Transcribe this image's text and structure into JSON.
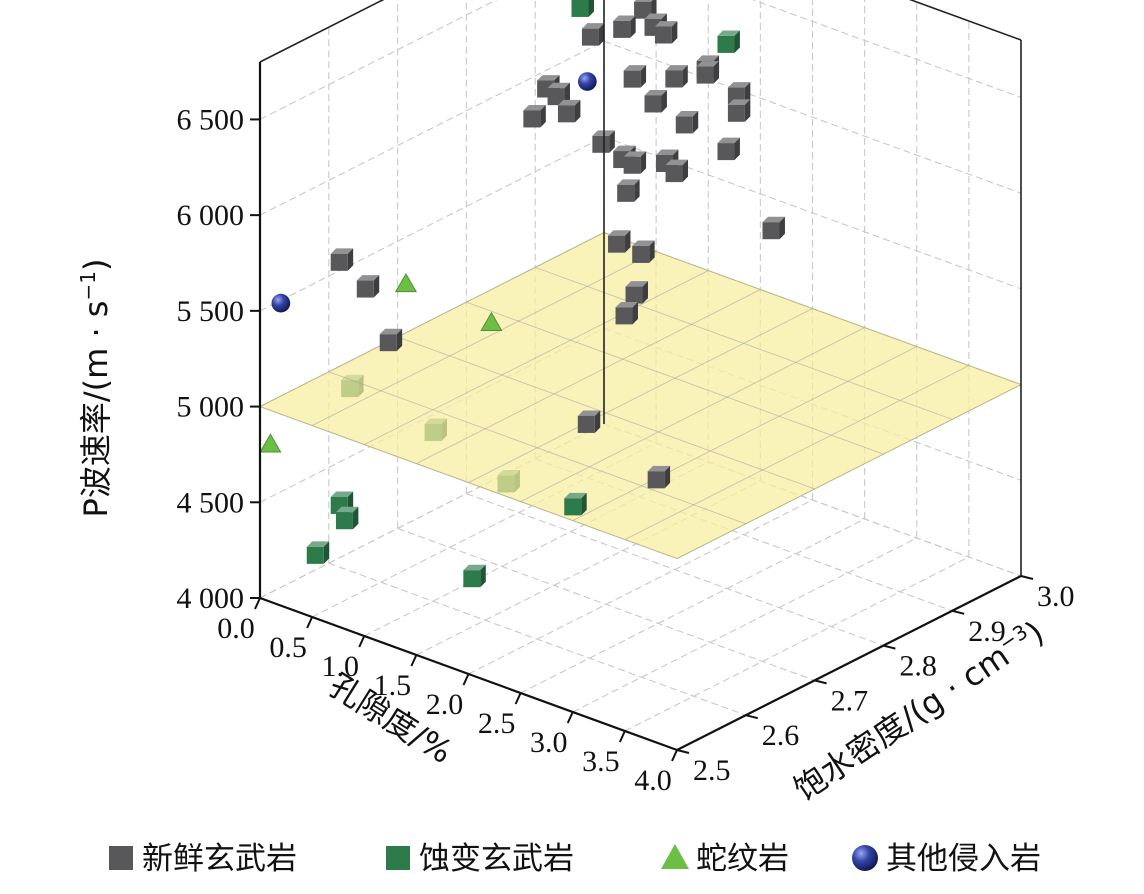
{
  "chart_data": {
    "type": "scatter3d",
    "zlabel": "P波速率/(m · s",
    "zlabel_sup": "−1",
    "zlabel_close": ")",
    "xlabel": "孔隙度/%",
    "ylabel": "饱水密度/(g · cm",
    "ylabel_sup": "−3",
    "ylabel_close": ")",
    "xlim": [
      0,
      4
    ],
    "ylim": [
      2.5,
      3.0
    ],
    "zlim": [
      4000,
      6800
    ],
    "x_ticks": [
      "0.0",
      "0.5",
      "1.0",
      "1.5",
      "2.0",
      "2.5",
      "3.0",
      "3.5",
      "4.0"
    ],
    "y_ticks": [
      "2.5",
      "2.6",
      "2.7",
      "2.8",
      "2.9",
      "3.0"
    ],
    "z_ticks": [
      "4 000",
      "4 500",
      "5 000",
      "5 500",
      "6 000",
      "6 500"
    ],
    "z_tick_values": [
      4000,
      4500,
      5000,
      5500,
      6000,
      6500
    ],
    "threshold_plane": 5000,
    "legend_position": "bottom",
    "series": [
      {
        "name": "新鲜玄武岩",
        "marker": "cube",
        "color": "#58575a",
        "points": [
          [
            0.3,
            2.95,
            6650
          ],
          [
            0.45,
            2.95,
            6560
          ],
          [
            0.7,
            2.95,
            6420
          ],
          [
            0.1,
            2.95,
            6360
          ],
          [
            0.9,
            2.95,
            6330
          ],
          [
            0.5,
            2.95,
            6280
          ],
          [
            0.2,
            2.95,
            6180
          ],
          [
            0.6,
            2.95,
            6040
          ],
          [
            0.1,
            2.9,
            5980
          ],
          [
            0.2,
            2.9,
            5960
          ],
          [
            0.3,
            2.9,
            5890
          ],
          [
            0.1,
            2.88,
            5860
          ],
          [
            0.8,
            2.95,
            5950
          ],
          [
            1.0,
            2.95,
            6120
          ],
          [
            1.3,
            2.95,
            6230
          ],
          [
            1.6,
            2.95,
            6150
          ],
          [
            1.6,
            2.95,
            6060
          ],
          [
            1.1,
            2.95,
            5900
          ],
          [
            1.5,
            2.95,
            5840
          ],
          [
            1.2,
            2.92,
            5720
          ],
          [
            1.0,
            2.88,
            5650
          ],
          [
            0.8,
            2.95,
            6350
          ],
          [
            1.3,
            2.95,
            6200
          ],
          [
            1.9,
            2.8,
            6130
          ],
          [
            2.1,
            2.7,
            5930
          ],
          [
            2.2,
            2.72,
            5860
          ],
          [
            2.7,
            2.62,
            5820
          ],
          [
            2.4,
            2.68,
            5760
          ],
          [
            1.8,
            2.97,
            5450
          ],
          [
            0.3,
            2.95,
            5640
          ],
          [
            0.5,
            2.95,
            5600
          ],
          [
            0.6,
            2.95,
            5590
          ],
          [
            0.1,
            2.6,
            5620
          ],
          [
            0.35,
            2.6,
            5530
          ],
          [
            0.9,
            2.55,
            5450
          ],
          [
            2.8,
            2.55,
            5400
          ],
          [
            3.8,
            2.5,
            5400
          ]
        ]
      },
      {
        "name": "蚀变玄武岩",
        "marker": "cube",
        "color": "#2d7a4b",
        "points": [
          [
            0.6,
            2.95,
            6870
          ],
          [
            0.1,
            2.95,
            6310
          ],
          [
            1.5,
            2.95,
            6400
          ],
          [
            3.0,
            2.5,
            5100
          ],
          [
            0.2,
            2.6,
            4980
          ],
          [
            1.0,
            2.6,
            4910
          ],
          [
            1.7,
            2.6,
            4780
          ],
          [
            0.1,
            2.6,
            4350
          ],
          [
            0.15,
            2.6,
            4280
          ],
          [
            0.2,
            2.55,
            4200
          ],
          [
            1.9,
            2.52,
            4470
          ]
        ]
      },
      {
        "name": "蛇纹岩",
        "marker": "triangle",
        "color": "#6cbf45",
        "points": [
          [
            0.08,
            2.7,
            5290
          ],
          [
            0.9,
            2.7,
            5250
          ],
          [
            0.1,
            2.5,
            4820
          ]
        ]
      },
      {
        "name": "其他侵入岩",
        "marker": "sphere",
        "color": "#2c3d99",
        "points": [
          [
            0.3,
            3.0,
            6800
          ],
          [
            0.4,
            3.0,
            6680
          ],
          [
            0.5,
            2.9,
            6070
          ],
          [
            0.2,
            2.5,
            5580
          ]
        ]
      }
    ]
  }
}
